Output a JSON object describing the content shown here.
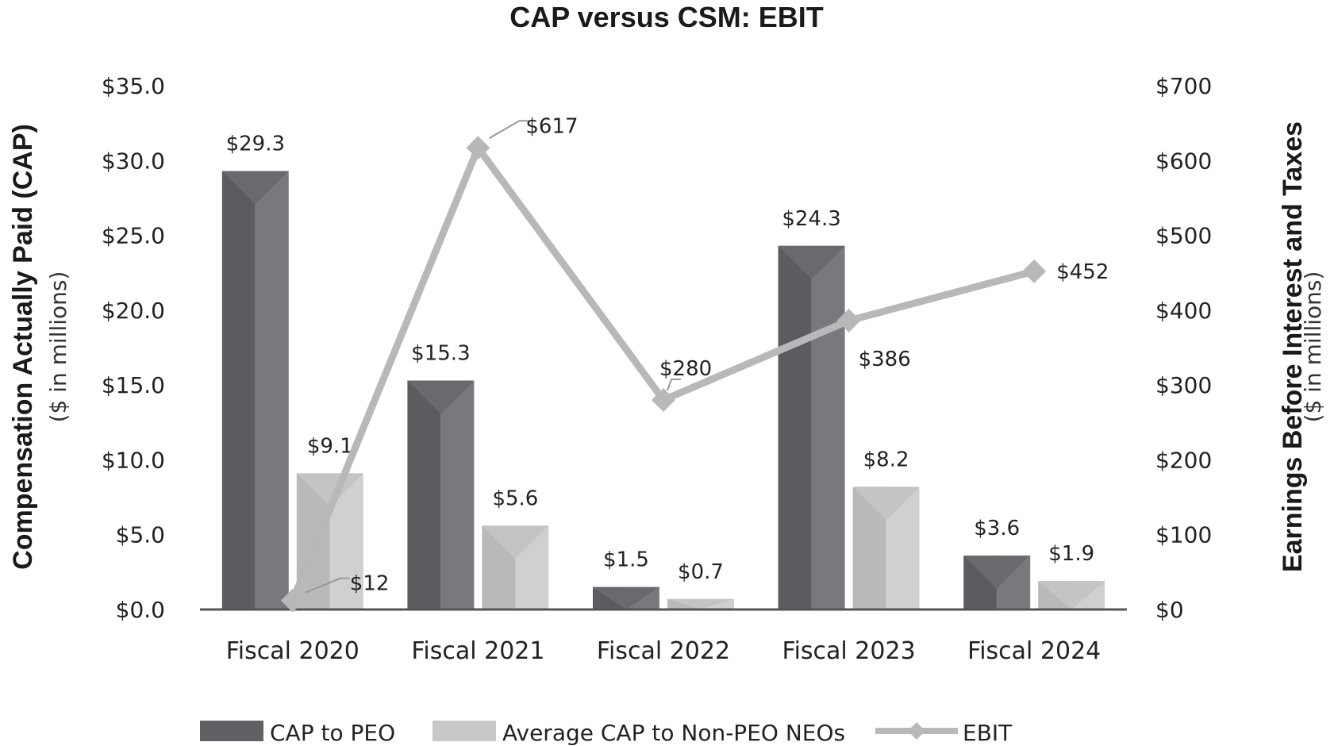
{
  "chart_data": {
    "type": "bar",
    "title": "CAP versus CSM: EBIT",
    "categories": [
      "Fiscal 2020",
      "Fiscal 2021",
      "Fiscal 2022",
      "Fiscal 2023",
      "Fiscal 2024"
    ],
    "series": [
      {
        "name": "CAP to PEO",
        "kind": "bar",
        "axis": "left",
        "color": "#6b6b6f",
        "values": [
          29.3,
          15.3,
          1.5,
          24.3,
          3.6
        ],
        "labels": [
          "$29.3",
          "$15.3",
          "$1.5",
          "$24.3",
          "$3.6"
        ]
      },
      {
        "name": "Average CAP to Non-PEO NEOs",
        "kind": "bar",
        "axis": "left",
        "color": "#c4c4c6",
        "values": [
          9.1,
          5.6,
          0.7,
          8.2,
          1.9
        ],
        "labels": [
          "$9.1",
          "$5.6",
          "$0.7",
          "$8.2",
          "$1.9"
        ]
      },
      {
        "name": "EBIT",
        "kind": "line",
        "axis": "right",
        "color": "#b8b8ba",
        "values": [
          12,
          617,
          280,
          386,
          452
        ],
        "labels": [
          "$12",
          "$617",
          "$280",
          "$386",
          "$452"
        ]
      }
    ],
    "y_left": {
      "title": "Compensation Actually Paid (CAP)",
      "subtitle": "($ in millions)",
      "range": [
        0,
        35
      ],
      "ticks": [
        "$0.0",
        "$5.0",
        "$10.0",
        "$15.0",
        "$20.0",
        "$25.0",
        "$30.0",
        "$35.0"
      ]
    },
    "y_right": {
      "title": "Earnings Before Interest and Taxes",
      "subtitle": "($ in millions)",
      "range": [
        0,
        700
      ],
      "ticks": [
        "$0",
        "$100",
        "$200",
        "$300",
        "$400",
        "$500",
        "$600",
        "$700"
      ]
    },
    "legend_position": "bottom",
    "grid": false
  }
}
